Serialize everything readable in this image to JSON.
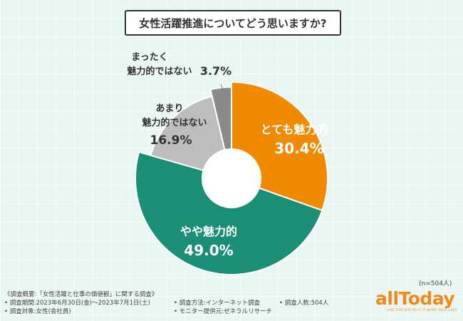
{
  "title": "女性活躍推進についてどう思いますか?",
  "sample_size": "(n=504人)",
  "footer": {
    "overview": "《調査概要:「女性活躍と仕事の価値観」に関する調査》",
    "period": "• 調査期間:2023年6月30日(金)〜2023年7月1日(土)",
    "method": "• 調査方法:インターネット調査",
    "respondents": "• 調査人数:504人",
    "target": "• 調査対象:女性(会社員)",
    "provider": "• モニター提供元:ゼネラルリサーチ"
  },
  "logo": {
    "name": "allToday",
    "tagline": "LIVE THIS DAY AS IF IT WERE YOUR LAST"
  },
  "colors": {
    "very": "#f08a00",
    "somewhat": "#1b8f75",
    "not_much": "#bdbdbd",
    "not_at_all": "#8a8a8a"
  },
  "chart_data": {
    "type": "pie",
    "title": "女性活躍推進についてどう思いますか?",
    "categories": [
      "とても魅力的",
      "やや魅力的",
      "あまり魅力的ではない",
      "まったく魅力的ではない"
    ],
    "values": [
      30.4,
      49.0,
      16.9,
      3.7
    ],
    "unit": "%",
    "value_labels": [
      "30.4%",
      "49.0%",
      "16.9%",
      "3.7%"
    ]
  }
}
